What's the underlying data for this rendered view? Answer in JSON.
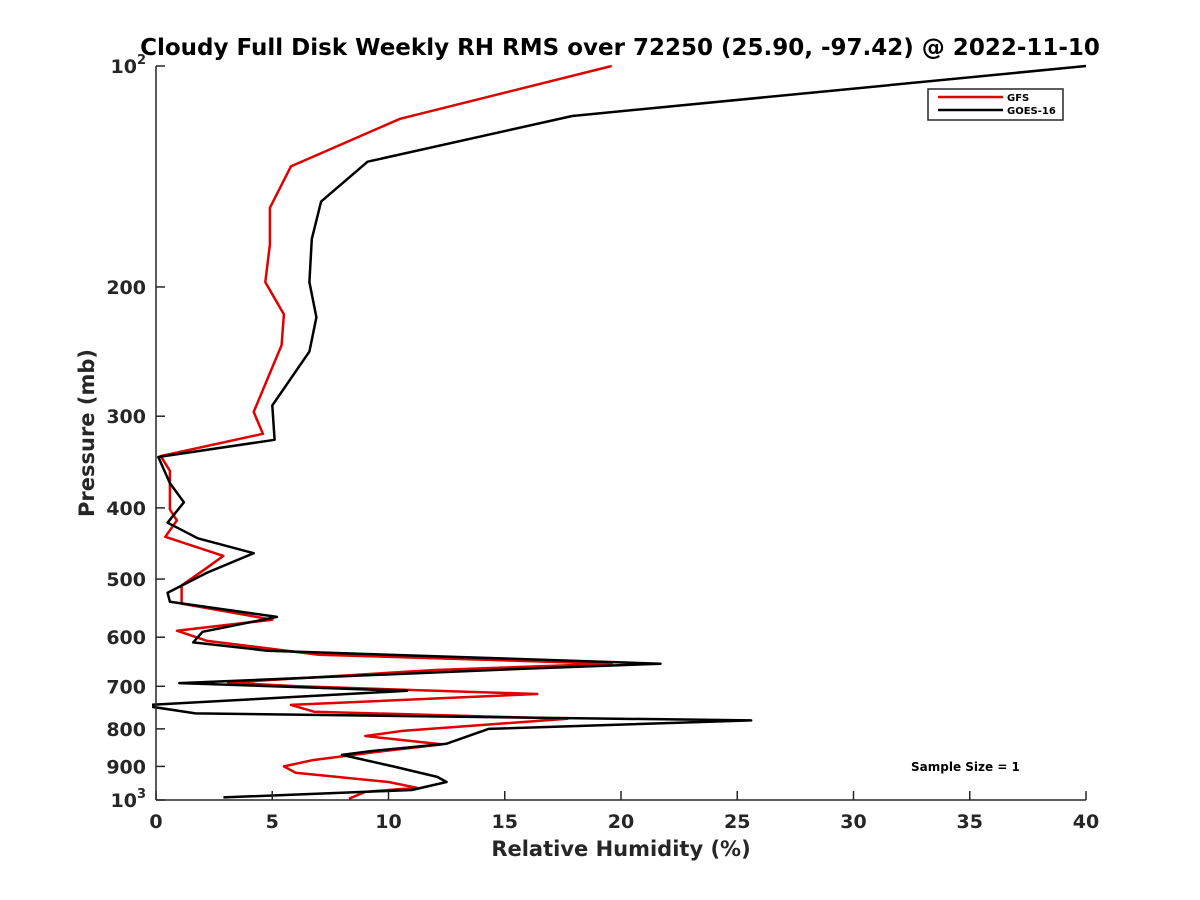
{
  "chart_data": {
    "type": "line",
    "title": "Cloudy Full Disk Weekly RH RMS over 72250 (25.90, -97.42) @ 2022-11-10",
    "xlabel": "Relative Humidity (%)",
    "ylabel": "Pressure (mb)",
    "xlim": [
      0,
      40
    ],
    "ylim": [
      100,
      1000
    ],
    "y_scale": "log",
    "y_reversed": true,
    "x_ticks": [
      "0",
      "5",
      "10",
      "15",
      "20",
      "25",
      "30",
      "35",
      "40"
    ],
    "y_ticks": [
      {
        "value": 100,
        "label": "10",
        "sup": "2"
      },
      {
        "value": 200,
        "label": "200"
      },
      {
        "value": 300,
        "label": "300"
      },
      {
        "value": 400,
        "label": "400"
      },
      {
        "value": 500,
        "label": "500"
      },
      {
        "value": 600,
        "label": "600"
      },
      {
        "value": 700,
        "label": "700"
      },
      {
        "value": 800,
        "label": "800"
      },
      {
        "value": 900,
        "label": "900"
      },
      {
        "value": 1000,
        "label": "10",
        "sup": "3"
      }
    ],
    "grid": false,
    "legend_position": "top-right",
    "annotation": "Sample Size = 1",
    "series": [
      {
        "name": "GFS",
        "color": "#e00000",
        "points": [
          [
            19.6,
            100
          ],
          [
            10.5,
            118
          ],
          [
            5.8,
            137
          ],
          [
            4.9,
            156
          ],
          [
            4.9,
            175
          ],
          [
            4.7,
            197
          ],
          [
            5.5,
            218
          ],
          [
            5.4,
            240
          ],
          [
            4.2,
            296
          ],
          [
            4.6,
            317
          ],
          [
            0.2,
            340
          ],
          [
            0.6,
            356
          ],
          [
            0.6,
            394
          ],
          [
            0.6,
            402
          ],
          [
            0.9,
            416
          ],
          [
            0.4,
            438
          ],
          [
            2.9,
            465
          ],
          [
            2.1,
            485
          ],
          [
            1.1,
            510
          ],
          [
            1.1,
            540
          ],
          [
            5.0,
            568
          ],
          [
            0.9,
            588
          ],
          [
            2.2,
            607
          ],
          [
            7.0,
            634
          ],
          [
            19.6,
            652
          ],
          [
            12.0,
            665
          ],
          [
            3.1,
            692
          ],
          [
            6.1,
            700
          ],
          [
            16.4,
            717
          ],
          [
            5.8,
            742
          ],
          [
            6.8,
            758
          ],
          [
            17.7,
            775
          ],
          [
            10.6,
            805
          ],
          [
            9.0,
            818
          ],
          [
            12.3,
            840
          ],
          [
            9.5,
            860
          ],
          [
            6.7,
            883
          ],
          [
            5.5,
            900
          ],
          [
            6.0,
            918
          ],
          [
            10.0,
            945
          ],
          [
            11.2,
            962
          ],
          [
            9.0,
            975
          ],
          [
            8.3,
            996
          ]
        ]
      },
      {
        "name": "GOES-16",
        "color": "#000000",
        "points": [
          [
            40.0,
            100
          ],
          [
            17.9,
            117
          ],
          [
            9.1,
            135
          ],
          [
            7.1,
            153
          ],
          [
            6.7,
            172
          ],
          [
            6.6,
            197
          ],
          [
            6.9,
            220
          ],
          [
            6.6,
            245
          ],
          [
            5.0,
            290
          ],
          [
            5.1,
            323
          ],
          [
            0.1,
            341
          ],
          [
            0.6,
            370
          ],
          [
            1.2,
            393
          ],
          [
            0.5,
            419
          ],
          [
            1.8,
            440
          ],
          [
            4.2,
            461
          ],
          [
            2.2,
            490
          ],
          [
            0.5,
            522
          ],
          [
            0.6,
            537
          ],
          [
            5.2,
            563
          ],
          [
            2.0,
            590
          ],
          [
            1.6,
            610
          ],
          [
            4.8,
            626
          ],
          [
            21.7,
            652
          ],
          [
            16.1,
            662
          ],
          [
            1.0,
            693
          ],
          [
            10.8,
            710
          ],
          [
            -0.6,
            743
          ],
          [
            1.7,
            762
          ],
          [
            25.6,
            779
          ],
          [
            14.3,
            800
          ],
          [
            12.5,
            838
          ],
          [
            9.2,
            858
          ],
          [
            8.0,
            868
          ],
          [
            10.2,
            900
          ],
          [
            12.1,
            930
          ],
          [
            12.5,
            945
          ],
          [
            11.0,
            969
          ],
          [
            2.9,
            992
          ]
        ]
      }
    ]
  }
}
